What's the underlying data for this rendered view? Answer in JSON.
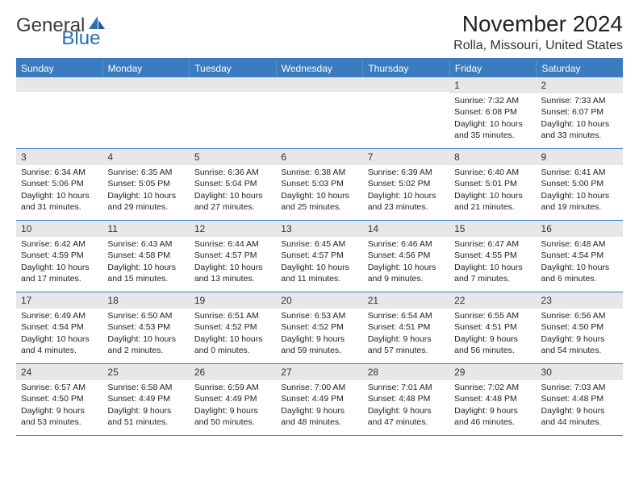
{
  "logo": {
    "text1": "General",
    "text2": "Blue"
  },
  "colors": {
    "header_bg": "#3b7bbf",
    "header_text": "#ffffff",
    "band_bg": "#e7e7e7",
    "rule": "#3b7bbf",
    "logo_gray": "#3b3b3b",
    "logo_blue": "#2a6fb5"
  },
  "title": "November 2024",
  "location": "Rolla, Missouri, United States",
  "weekdays": [
    "Sunday",
    "Monday",
    "Tuesday",
    "Wednesday",
    "Thursday",
    "Friday",
    "Saturday"
  ],
  "weeks": [
    [
      {
        "n": "",
        "lines": []
      },
      {
        "n": "",
        "lines": []
      },
      {
        "n": "",
        "lines": []
      },
      {
        "n": "",
        "lines": []
      },
      {
        "n": "",
        "lines": []
      },
      {
        "n": "1",
        "lines": [
          "Sunrise: 7:32 AM",
          "Sunset: 6:08 PM",
          "Daylight: 10 hours",
          "and 35 minutes."
        ]
      },
      {
        "n": "2",
        "lines": [
          "Sunrise: 7:33 AM",
          "Sunset: 6:07 PM",
          "Daylight: 10 hours",
          "and 33 minutes."
        ]
      }
    ],
    [
      {
        "n": "3",
        "lines": [
          "Sunrise: 6:34 AM",
          "Sunset: 5:06 PM",
          "Daylight: 10 hours",
          "and 31 minutes."
        ]
      },
      {
        "n": "4",
        "lines": [
          "Sunrise: 6:35 AM",
          "Sunset: 5:05 PM",
          "Daylight: 10 hours",
          "and 29 minutes."
        ]
      },
      {
        "n": "5",
        "lines": [
          "Sunrise: 6:36 AM",
          "Sunset: 5:04 PM",
          "Daylight: 10 hours",
          "and 27 minutes."
        ]
      },
      {
        "n": "6",
        "lines": [
          "Sunrise: 6:38 AM",
          "Sunset: 5:03 PM",
          "Daylight: 10 hours",
          "and 25 minutes."
        ]
      },
      {
        "n": "7",
        "lines": [
          "Sunrise: 6:39 AM",
          "Sunset: 5:02 PM",
          "Daylight: 10 hours",
          "and 23 minutes."
        ]
      },
      {
        "n": "8",
        "lines": [
          "Sunrise: 6:40 AM",
          "Sunset: 5:01 PM",
          "Daylight: 10 hours",
          "and 21 minutes."
        ]
      },
      {
        "n": "9",
        "lines": [
          "Sunrise: 6:41 AM",
          "Sunset: 5:00 PM",
          "Daylight: 10 hours",
          "and 19 minutes."
        ]
      }
    ],
    [
      {
        "n": "10",
        "lines": [
          "Sunrise: 6:42 AM",
          "Sunset: 4:59 PM",
          "Daylight: 10 hours",
          "and 17 minutes."
        ]
      },
      {
        "n": "11",
        "lines": [
          "Sunrise: 6:43 AM",
          "Sunset: 4:58 PM",
          "Daylight: 10 hours",
          "and 15 minutes."
        ]
      },
      {
        "n": "12",
        "lines": [
          "Sunrise: 6:44 AM",
          "Sunset: 4:57 PM",
          "Daylight: 10 hours",
          "and 13 minutes."
        ]
      },
      {
        "n": "13",
        "lines": [
          "Sunrise: 6:45 AM",
          "Sunset: 4:57 PM",
          "Daylight: 10 hours",
          "and 11 minutes."
        ]
      },
      {
        "n": "14",
        "lines": [
          "Sunrise: 6:46 AM",
          "Sunset: 4:56 PM",
          "Daylight: 10 hours",
          "and 9 minutes."
        ]
      },
      {
        "n": "15",
        "lines": [
          "Sunrise: 6:47 AM",
          "Sunset: 4:55 PM",
          "Daylight: 10 hours",
          "and 7 minutes."
        ]
      },
      {
        "n": "16",
        "lines": [
          "Sunrise: 6:48 AM",
          "Sunset: 4:54 PM",
          "Daylight: 10 hours",
          "and 6 minutes."
        ]
      }
    ],
    [
      {
        "n": "17",
        "lines": [
          "Sunrise: 6:49 AM",
          "Sunset: 4:54 PM",
          "Daylight: 10 hours",
          "and 4 minutes."
        ]
      },
      {
        "n": "18",
        "lines": [
          "Sunrise: 6:50 AM",
          "Sunset: 4:53 PM",
          "Daylight: 10 hours",
          "and 2 minutes."
        ]
      },
      {
        "n": "19",
        "lines": [
          "Sunrise: 6:51 AM",
          "Sunset: 4:52 PM",
          "Daylight: 10 hours",
          "and 0 minutes."
        ]
      },
      {
        "n": "20",
        "lines": [
          "Sunrise: 6:53 AM",
          "Sunset: 4:52 PM",
          "Daylight: 9 hours",
          "and 59 minutes."
        ]
      },
      {
        "n": "21",
        "lines": [
          "Sunrise: 6:54 AM",
          "Sunset: 4:51 PM",
          "Daylight: 9 hours",
          "and 57 minutes."
        ]
      },
      {
        "n": "22",
        "lines": [
          "Sunrise: 6:55 AM",
          "Sunset: 4:51 PM",
          "Daylight: 9 hours",
          "and 56 minutes."
        ]
      },
      {
        "n": "23",
        "lines": [
          "Sunrise: 6:56 AM",
          "Sunset: 4:50 PM",
          "Daylight: 9 hours",
          "and 54 minutes."
        ]
      }
    ],
    [
      {
        "n": "24",
        "lines": [
          "Sunrise: 6:57 AM",
          "Sunset: 4:50 PM",
          "Daylight: 9 hours",
          "and 53 minutes."
        ]
      },
      {
        "n": "25",
        "lines": [
          "Sunrise: 6:58 AM",
          "Sunset: 4:49 PM",
          "Daylight: 9 hours",
          "and 51 minutes."
        ]
      },
      {
        "n": "26",
        "lines": [
          "Sunrise: 6:59 AM",
          "Sunset: 4:49 PM",
          "Daylight: 9 hours",
          "and 50 minutes."
        ]
      },
      {
        "n": "27",
        "lines": [
          "Sunrise: 7:00 AM",
          "Sunset: 4:49 PM",
          "Daylight: 9 hours",
          "and 48 minutes."
        ]
      },
      {
        "n": "28",
        "lines": [
          "Sunrise: 7:01 AM",
          "Sunset: 4:48 PM",
          "Daylight: 9 hours",
          "and 47 minutes."
        ]
      },
      {
        "n": "29",
        "lines": [
          "Sunrise: 7:02 AM",
          "Sunset: 4:48 PM",
          "Daylight: 9 hours",
          "and 46 minutes."
        ]
      },
      {
        "n": "30",
        "lines": [
          "Sunrise: 7:03 AM",
          "Sunset: 4:48 PM",
          "Daylight: 9 hours",
          "and 44 minutes."
        ]
      }
    ]
  ]
}
